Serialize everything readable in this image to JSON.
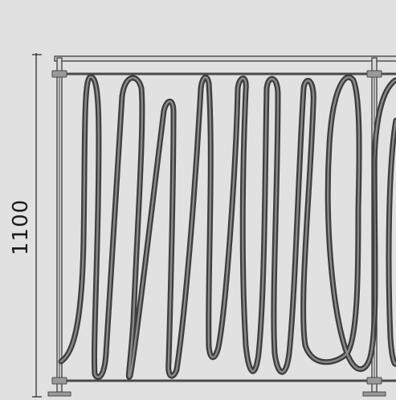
{
  "dimension": {
    "height_label": "1100"
  },
  "colors": {
    "background": "#e1e1e1",
    "frame_stroke": "#4a4a4a",
    "frame_fill": "#d8d8d8",
    "coil_outer": "#3d3d3d",
    "coil_inner": "#8a8a8a",
    "bracket_fill": "#9a9a9a",
    "dimension_line": "#222222"
  }
}
